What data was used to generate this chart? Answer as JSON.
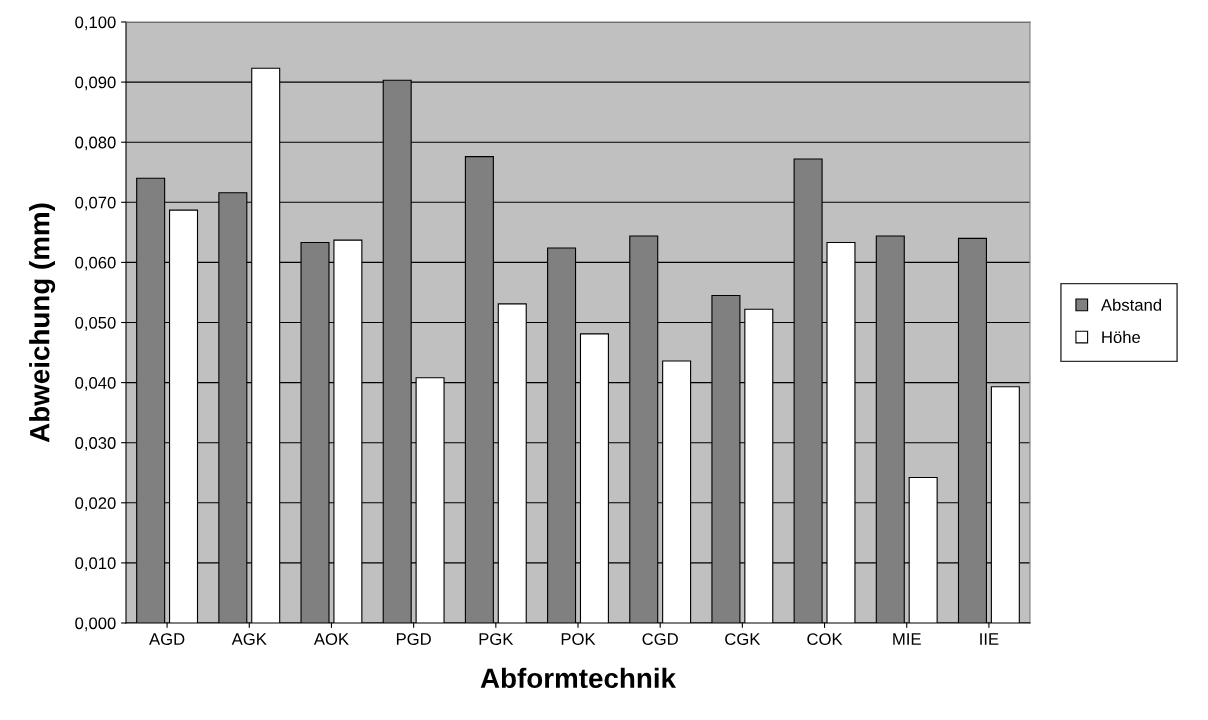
{
  "chart_data": {
    "type": "bar",
    "xlabel": "Abformtechnik",
    "ylabel": "Abweichung (mm)",
    "categories": [
      "AGD",
      "AGK",
      "AOK",
      "PGD",
      "PGK",
      "POK",
      "CGD",
      "CGK",
      "COK",
      "MIE",
      "IIE"
    ],
    "series": [
      {
        "name": "Abstand",
        "color": "#808080",
        "values": [
          0.074,
          0.0716,
          0.0633,
          0.0903,
          0.0776,
          0.0624,
          0.0644,
          0.0545,
          0.0772,
          0.0644,
          0.064
        ]
      },
      {
        "name": "Höhe",
        "color": "#ffffff",
        "values": [
          0.0687,
          0.0923,
          0.0637,
          0.0408,
          0.0531,
          0.0481,
          0.0436,
          0.0522,
          0.0633,
          0.0242,
          0.0393
        ]
      }
    ],
    "ylim": [
      0,
      0.1
    ],
    "yticks": [
      {
        "value": 0,
        "label": "0,000"
      },
      {
        "value": 0.01,
        "label": "0,010"
      },
      {
        "value": 0.02,
        "label": "0,020"
      },
      {
        "value": 0.03,
        "label": "0,030"
      },
      {
        "value": 0.04,
        "label": "0,040"
      },
      {
        "value": 0.05,
        "label": "0,050"
      },
      {
        "value": 0.06,
        "label": "0,060"
      },
      {
        "value": 0.07,
        "label": "0,070"
      },
      {
        "value": 0.08,
        "label": "0,080"
      },
      {
        "value": 0.09,
        "label": "0,090"
      },
      {
        "value": 0.1,
        "label": "0,100"
      }
    ],
    "grid": "y",
    "legend": "right"
  }
}
